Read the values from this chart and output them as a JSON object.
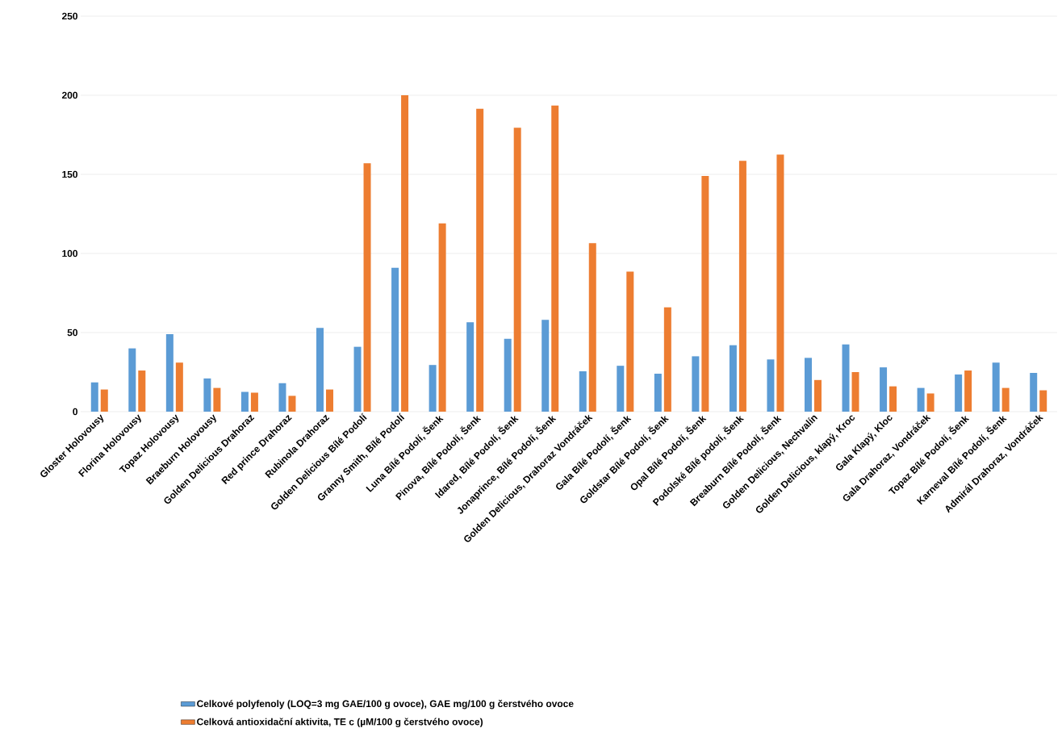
{
  "chart_data": {
    "type": "bar",
    "categories": [
      "Gloster Holovousy",
      "Florina Holovousy",
      "Topaz Holovousy",
      "Braeburn Holovousy",
      "Golden Delicious  Drahoraz",
      "Red prince  Drahoraz",
      "Rubinola Drahoraz",
      "Golden Delicious Bílé Podolí",
      "Granny Smith, Bílé Podolí",
      "Luna Bílé Podolí, Šenk",
      "Pinova, Bílé Podolí, Šenk",
      "Idared, Bílé Podolí, Šenk",
      "Jonaprince, Bílé Podolí, Šenk",
      "Golden Delicious, Drahoraz Vondráček",
      "Gala Bílé Podolí, Šenk",
      "Goldstar Bílé Podolí, Šenk",
      "Opal Bílé Podolí, Šenk",
      "Podolské Bílé podolí, Šenk",
      "Breaburn Bílé Podolí, Šenk",
      "Golden Delicious, Nechvalín",
      "Golden Delicious, klapý,  Kroc",
      "Gala Klapý, Kloc",
      "Gala Drahoraz, Vondráček",
      "Topaz Bílé Podolí, Šenk",
      "Karneval Bílé Podolí, Šenk",
      "Admirál Drahoraz, Vondráček"
    ],
    "series": [
      {
        "name": "Celkové polyfenoly (LOQ=3 mg GAE/100 g ovoce), GAE mg/100 g čerstvého ovoce",
        "color": "#5b9bd5",
        "values": [
          18.5,
          40,
          49,
          21,
          12.5,
          18,
          53,
          41,
          91,
          29.5,
          56.5,
          46,
          58,
          25.5,
          29,
          24,
          35,
          42,
          33,
          34,
          42.5,
          28,
          15,
          23.5,
          31,
          24.5
        ]
      },
      {
        "name": "Celková antioxidační aktivita, TE c (µM/100 g čerstvého ovoce)",
        "color": "#ed7d31",
        "values": [
          14,
          26,
          31,
          15,
          12,
          10,
          14,
          157,
          200,
          119,
          191.5,
          179.5,
          193.5,
          106.5,
          88.5,
          66,
          149,
          158.5,
          162.5,
          20,
          25,
          16,
          11.5,
          26,
          15,
          13.5
        ]
      }
    ],
    "ylim": [
      0,
      250
    ],
    "yticks": [
      0,
      50,
      100,
      150,
      200,
      250
    ],
    "grid": "y",
    "legend": "bottom"
  }
}
